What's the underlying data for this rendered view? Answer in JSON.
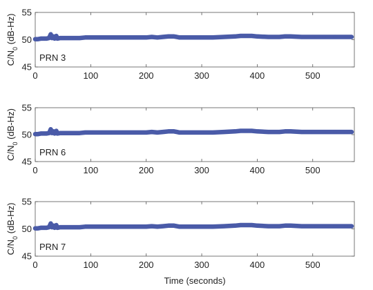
{
  "figure": {
    "xlabel": "Time (seconds)"
  },
  "chart_data": [
    {
      "type": "line",
      "panel_label": "PRN 3",
      "ylabel": "C/N0 (dB-Hz)",
      "ylim": [
        45,
        55
      ],
      "yticks": [
        45,
        50,
        55
      ],
      "xlim": [
        0,
        575
      ],
      "xticks": [
        0,
        100,
        200,
        300,
        400,
        500
      ],
      "grid": false,
      "series_color": "#4a5ba8",
      "series": [
        {
          "x": [
            0,
            5,
            10,
            15,
            20,
            25,
            28,
            30,
            33,
            35,
            38,
            40,
            45,
            50,
            60,
            70,
            80,
            90,
            100,
            120,
            140,
            160,
            180,
            200,
            210,
            220,
            230,
            240,
            250,
            255,
            260,
            280,
            300,
            320,
            340,
            360,
            370,
            380,
            390,
            400,
            420,
            440,
            450,
            460,
            480,
            500,
            520,
            540,
            560,
            570
          ],
          "y": [
            50.1,
            50.1,
            50.2,
            50.2,
            50.2,
            50.3,
            51.0,
            50.3,
            50.6,
            50.2,
            50.7,
            50.2,
            50.3,
            50.3,
            50.3,
            50.3,
            50.3,
            50.4,
            50.4,
            50.4,
            50.4,
            50.4,
            50.4,
            50.4,
            50.5,
            50.4,
            50.5,
            50.6,
            50.6,
            50.5,
            50.4,
            50.4,
            50.4,
            50.4,
            50.5,
            50.6,
            50.7,
            50.7,
            50.7,
            50.6,
            50.5,
            50.5,
            50.6,
            50.6,
            50.5,
            50.5,
            50.5,
            50.5,
            50.5,
            50.5
          ]
        }
      ]
    },
    {
      "type": "line",
      "panel_label": "PRN 6",
      "ylabel": "C/N0 (dB-Hz)",
      "ylim": [
        45,
        55
      ],
      "yticks": [
        45,
        50,
        55
      ],
      "xlim": [
        0,
        575
      ],
      "xticks": [
        0,
        100,
        200,
        300,
        400,
        500
      ],
      "grid": false,
      "series_color": "#4a5ba8",
      "series": [
        {
          "x": [
            0,
            5,
            10,
            15,
            20,
            25,
            28,
            30,
            33,
            35,
            38,
            40,
            45,
            50,
            60,
            70,
            80,
            90,
            100,
            120,
            140,
            160,
            180,
            200,
            210,
            220,
            230,
            240,
            250,
            255,
            260,
            280,
            300,
            320,
            340,
            360,
            370,
            380,
            390,
            400,
            420,
            440,
            450,
            460,
            480,
            500,
            520,
            540,
            560,
            570
          ],
          "y": [
            50.1,
            50.1,
            50.2,
            50.2,
            50.2,
            50.3,
            51.0,
            50.3,
            50.6,
            50.2,
            50.7,
            50.2,
            50.3,
            50.3,
            50.3,
            50.3,
            50.3,
            50.4,
            50.4,
            50.4,
            50.4,
            50.4,
            50.4,
            50.4,
            50.5,
            50.4,
            50.5,
            50.6,
            50.6,
            50.5,
            50.4,
            50.4,
            50.4,
            50.4,
            50.5,
            50.6,
            50.7,
            50.7,
            50.7,
            50.6,
            50.5,
            50.5,
            50.6,
            50.6,
            50.5,
            50.5,
            50.5,
            50.5,
            50.5,
            50.5
          ]
        }
      ]
    },
    {
      "type": "line",
      "panel_label": "PRN 7",
      "ylabel": "C/N0 (dB-Hz)",
      "ylim": [
        45,
        55
      ],
      "yticks": [
        45,
        50,
        55
      ],
      "xlim": [
        0,
        575
      ],
      "xticks": [
        0,
        100,
        200,
        300,
        400,
        500
      ],
      "grid": false,
      "series_color": "#4a5ba8",
      "series": [
        {
          "x": [
            0,
            5,
            10,
            15,
            20,
            25,
            28,
            30,
            33,
            35,
            38,
            40,
            45,
            50,
            60,
            70,
            80,
            90,
            100,
            120,
            140,
            160,
            180,
            200,
            210,
            220,
            230,
            240,
            250,
            255,
            260,
            280,
            300,
            320,
            340,
            360,
            370,
            380,
            390,
            400,
            420,
            440,
            450,
            460,
            480,
            500,
            520,
            540,
            560,
            570
          ],
          "y": [
            50.1,
            50.1,
            50.2,
            50.2,
            50.2,
            50.3,
            51.0,
            50.3,
            50.6,
            50.2,
            50.7,
            50.2,
            50.3,
            50.3,
            50.3,
            50.3,
            50.3,
            50.4,
            50.4,
            50.4,
            50.4,
            50.4,
            50.4,
            50.4,
            50.5,
            50.4,
            50.5,
            50.6,
            50.6,
            50.5,
            50.4,
            50.4,
            50.4,
            50.4,
            50.5,
            50.6,
            50.7,
            50.7,
            50.7,
            50.6,
            50.5,
            50.5,
            50.6,
            50.6,
            50.5,
            50.5,
            50.5,
            50.5,
            50.5,
            50.5
          ]
        }
      ]
    }
  ]
}
